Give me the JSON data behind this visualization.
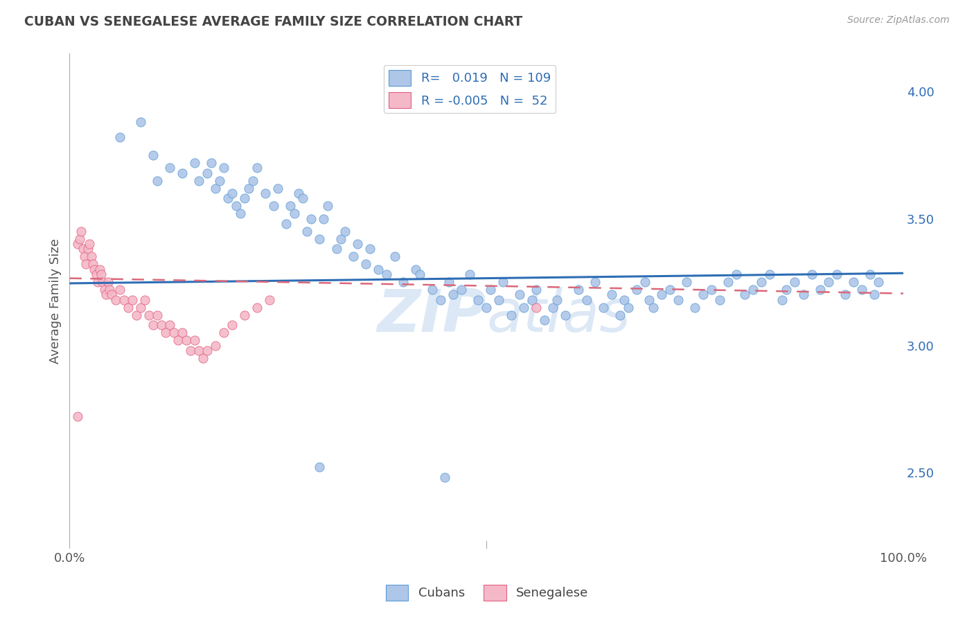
{
  "title": "CUBAN VS SENEGALESE AVERAGE FAMILY SIZE CORRELATION CHART",
  "source": "Source: ZipAtlas.com",
  "ylabel": "Average Family Size",
  "yticks": [
    2.5,
    3.0,
    3.5,
    4.0
  ],
  "xlim": [
    0.0,
    1.0
  ],
  "ylim": [
    2.2,
    4.15
  ],
  "cuban_color": "#aec6e8",
  "cuban_edge_color": "#5b9bd5",
  "sene_color": "#f4b8c8",
  "sene_edge_color": "#e06080",
  "cuban_line_color": "#2e6db4",
  "sene_line_color": "#d9687a",
  "grid_color": "#c8c8c8",
  "background_color": "#ffffff",
  "watermark_color": "#dce8f5",
  "cuban_x": [
    0.06,
    0.085,
    0.1,
    0.105,
    0.12,
    0.135,
    0.15,
    0.155,
    0.165,
    0.17,
    0.175,
    0.18,
    0.185,
    0.19,
    0.195,
    0.2,
    0.205,
    0.21,
    0.215,
    0.22,
    0.225,
    0.235,
    0.245,
    0.25,
    0.26,
    0.265,
    0.27,
    0.275,
    0.28,
    0.285,
    0.29,
    0.3,
    0.305,
    0.31,
    0.32,
    0.325,
    0.33,
    0.34,
    0.345,
    0.355,
    0.36,
    0.37,
    0.38,
    0.39,
    0.4,
    0.415,
    0.42,
    0.435,
    0.445,
    0.455,
    0.46,
    0.47,
    0.48,
    0.49,
    0.5,
    0.505,
    0.515,
    0.52,
    0.53,
    0.54,
    0.545,
    0.555,
    0.56,
    0.57,
    0.58,
    0.585,
    0.595,
    0.61,
    0.62,
    0.63,
    0.64,
    0.65,
    0.66,
    0.665,
    0.67,
    0.68,
    0.69,
    0.695,
    0.7,
    0.71,
    0.72,
    0.73,
    0.74,
    0.75,
    0.76,
    0.77,
    0.78,
    0.79,
    0.8,
    0.81,
    0.82,
    0.83,
    0.84,
    0.855,
    0.86,
    0.87,
    0.88,
    0.89,
    0.9,
    0.91,
    0.92,
    0.93,
    0.94,
    0.95,
    0.96,
    0.965,
    0.97,
    0.3,
    0.45
  ],
  "cuban_y": [
    3.82,
    3.88,
    3.75,
    3.65,
    3.7,
    3.68,
    3.72,
    3.65,
    3.68,
    3.72,
    3.62,
    3.65,
    3.7,
    3.58,
    3.6,
    3.55,
    3.52,
    3.58,
    3.62,
    3.65,
    3.7,
    3.6,
    3.55,
    3.62,
    3.48,
    3.55,
    3.52,
    3.6,
    3.58,
    3.45,
    3.5,
    3.42,
    3.5,
    3.55,
    3.38,
    3.42,
    3.45,
    3.35,
    3.4,
    3.32,
    3.38,
    3.3,
    3.28,
    3.35,
    3.25,
    3.3,
    3.28,
    3.22,
    3.18,
    3.25,
    3.2,
    3.22,
    3.28,
    3.18,
    3.15,
    3.22,
    3.18,
    3.25,
    3.12,
    3.2,
    3.15,
    3.18,
    3.22,
    3.1,
    3.15,
    3.18,
    3.12,
    3.22,
    3.18,
    3.25,
    3.15,
    3.2,
    3.12,
    3.18,
    3.15,
    3.22,
    3.25,
    3.18,
    3.15,
    3.2,
    3.22,
    3.18,
    3.25,
    3.15,
    3.2,
    3.22,
    3.18,
    3.25,
    3.28,
    3.2,
    3.22,
    3.25,
    3.28,
    3.18,
    3.22,
    3.25,
    3.2,
    3.28,
    3.22,
    3.25,
    3.28,
    3.2,
    3.25,
    3.22,
    3.28,
    3.2,
    3.25,
    2.52,
    2.48
  ],
  "sene_x": [
    0.01,
    0.012,
    0.014,
    0.016,
    0.018,
    0.02,
    0.022,
    0.024,
    0.026,
    0.028,
    0.03,
    0.032,
    0.034,
    0.036,
    0.038,
    0.04,
    0.042,
    0.044,
    0.046,
    0.048,
    0.05,
    0.055,
    0.06,
    0.065,
    0.07,
    0.075,
    0.08,
    0.085,
    0.09,
    0.095,
    0.1,
    0.105,
    0.11,
    0.115,
    0.12,
    0.125,
    0.13,
    0.135,
    0.14,
    0.145,
    0.15,
    0.155,
    0.16,
    0.165,
    0.175,
    0.185,
    0.195,
    0.21,
    0.225,
    0.24,
    0.01,
    0.56
  ],
  "sene_y": [
    3.4,
    3.42,
    3.45,
    3.38,
    3.35,
    3.32,
    3.38,
    3.4,
    3.35,
    3.32,
    3.3,
    3.28,
    3.25,
    3.3,
    3.28,
    3.25,
    3.22,
    3.2,
    3.25,
    3.22,
    3.2,
    3.18,
    3.22,
    3.18,
    3.15,
    3.18,
    3.12,
    3.15,
    3.18,
    3.12,
    3.08,
    3.12,
    3.08,
    3.05,
    3.08,
    3.05,
    3.02,
    3.05,
    3.02,
    2.98,
    3.02,
    2.98,
    2.95,
    2.98,
    3.0,
    3.05,
    3.08,
    3.12,
    3.15,
    3.18,
    2.72,
    3.15
  ]
}
